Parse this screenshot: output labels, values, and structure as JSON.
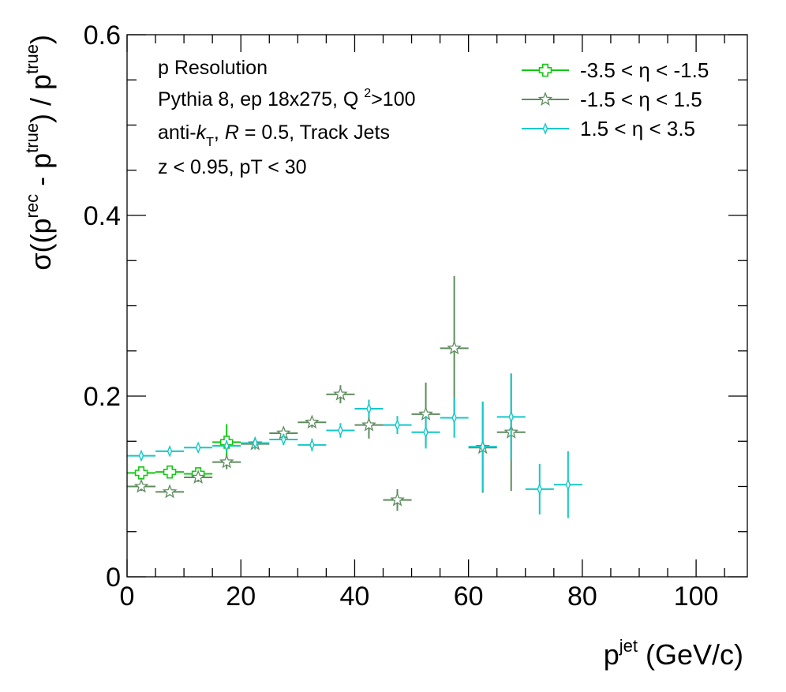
{
  "chart_data": {
    "type": "scatter",
    "xlim": [
      0,
      109
    ],
    "ylim": [
      0,
      0.6
    ],
    "x_ticks": [
      0,
      20,
      40,
      60,
      80,
      100
    ],
    "y_ticks": [
      0,
      0.2,
      0.4,
      0.6
    ],
    "x_tick_labels": [
      "0",
      "20",
      "40",
      "60",
      "80",
      "100"
    ],
    "y_tick_labels": [
      "0",
      "0.2",
      "0.4",
      "0.6"
    ],
    "grid": false,
    "legend_position": "top-right",
    "xlabel": {
      "base": "p",
      "sup": "jet",
      "rest": " (GeV/c)"
    },
    "ylabel": {
      "p1": "σ((p",
      "s1": "rec",
      "p2": " - p",
      "s2": "true",
      "p3": ") / p",
      "s3": "true",
      "p4": ")"
    },
    "annotations": {
      "line1": "p Resolution",
      "line2_a": "Pythia 8, ep 18x275, Q ",
      "line2_sup": "2",
      "line2_b": ">100",
      "line3_a": "anti-",
      "line3_k": "k",
      "line3_sub": "T",
      "line3_b": ", ",
      "line3_r": "R",
      "line3_c": " = 0.5, Track Jets",
      "line4": "z < 0.95, pT < 30"
    },
    "series": [
      {
        "name": "-3.5 <  η < -1.5",
        "color": "#14c814",
        "marker": "cross",
        "points": [
          {
            "x": 2.5,
            "y": 0.115,
            "xerr": 2.5,
            "yerr": 0.006
          },
          {
            "x": 7.5,
            "y": 0.116,
            "xerr": 2.5,
            "yerr": 0.006
          },
          {
            "x": 12.5,
            "y": 0.114,
            "xerr": 2.5,
            "yerr": 0.006
          },
          {
            "x": 17.5,
            "y": 0.149,
            "xerr": 2.5,
            "yerr": 0.02
          }
        ]
      },
      {
        "name": "-1.5 <  η < 1.5",
        "color": "#5f8c5f",
        "marker": "star",
        "points": [
          {
            "x": 2.5,
            "y": 0.1,
            "xerr": 2.5,
            "yerr": 0.005
          },
          {
            "x": 7.5,
            "y": 0.094,
            "xerr": 2.5,
            "yerr": 0.004
          },
          {
            "x": 12.5,
            "y": 0.11,
            "xerr": 2.5,
            "yerr": 0.005
          },
          {
            "x": 17.5,
            "y": 0.127,
            "xerr": 2.5,
            "yerr": 0.008
          },
          {
            "x": 22.5,
            "y": 0.147,
            "xerr": 2.5,
            "yerr": 0.006
          },
          {
            "x": 27.5,
            "y": 0.159,
            "xerr": 2.5,
            "yerr": 0.006
          },
          {
            "x": 32.5,
            "y": 0.171,
            "xerr": 2.5,
            "yerr": 0.006
          },
          {
            "x": 37.5,
            "y": 0.202,
            "xerr": 2.5,
            "yerr": 0.01
          },
          {
            "x": 42.5,
            "y": 0.168,
            "xerr": 2.5,
            "yerr": 0.015
          },
          {
            "x": 47.5,
            "y": 0.085,
            "xerr": 2.5,
            "yerr": 0.012
          },
          {
            "x": 52.5,
            "y": 0.18,
            "xerr": 2.5,
            "yerr": 0.035
          },
          {
            "x": 57.5,
            "y": 0.253,
            "xerr": 2.5,
            "yerr": 0.08
          },
          {
            "x": 62.5,
            "y": 0.143,
            "xerr": 2.5,
            "yerr": 0.05
          },
          {
            "x": 67.5,
            "y": 0.16,
            "xerr": 2.5,
            "yerr": 0.065
          }
        ]
      },
      {
        "name": "1.5 <  η < 3.5",
        "color": "#14c8c8",
        "marker": "diamond",
        "points": [
          {
            "x": 2.5,
            "y": 0.134,
            "xerr": 2.5,
            "yerr": 0.005
          },
          {
            "x": 7.5,
            "y": 0.139,
            "xerr": 2.5,
            "yerr": 0.004
          },
          {
            "x": 12.5,
            "y": 0.143,
            "xerr": 2.5,
            "yerr": 0.005
          },
          {
            "x": 17.5,
            "y": 0.145,
            "xerr": 2.5,
            "yerr": 0.006
          },
          {
            "x": 22.5,
            "y": 0.148,
            "xerr": 2.5,
            "yerr": 0.006
          },
          {
            "x": 27.5,
            "y": 0.152,
            "xerr": 2.5,
            "yerr": 0.006
          },
          {
            "x": 32.5,
            "y": 0.146,
            "xerr": 2.5,
            "yerr": 0.007
          },
          {
            "x": 37.5,
            "y": 0.162,
            "xerr": 2.5,
            "yerr": 0.008
          },
          {
            "x": 42.5,
            "y": 0.186,
            "xerr": 2.5,
            "yerr": 0.01
          },
          {
            "x": 47.5,
            "y": 0.168,
            "xerr": 2.5,
            "yerr": 0.01
          },
          {
            "x": 52.5,
            "y": 0.16,
            "xerr": 2.5,
            "yerr": 0.018
          },
          {
            "x": 57.5,
            "y": 0.176,
            "xerr": 2.5,
            "yerr": 0.022
          },
          {
            "x": 62.5,
            "y": 0.144,
            "xerr": 2.5,
            "yerr": 0.05
          },
          {
            "x": 67.5,
            "y": 0.177,
            "xerr": 2.5,
            "yerr": 0.048
          },
          {
            "x": 72.5,
            "y": 0.097,
            "xerr": 2.5,
            "yerr": 0.028
          },
          {
            "x": 77.5,
            "y": 0.102,
            "xerr": 2.5,
            "yerr": 0.037
          }
        ]
      }
    ]
  }
}
